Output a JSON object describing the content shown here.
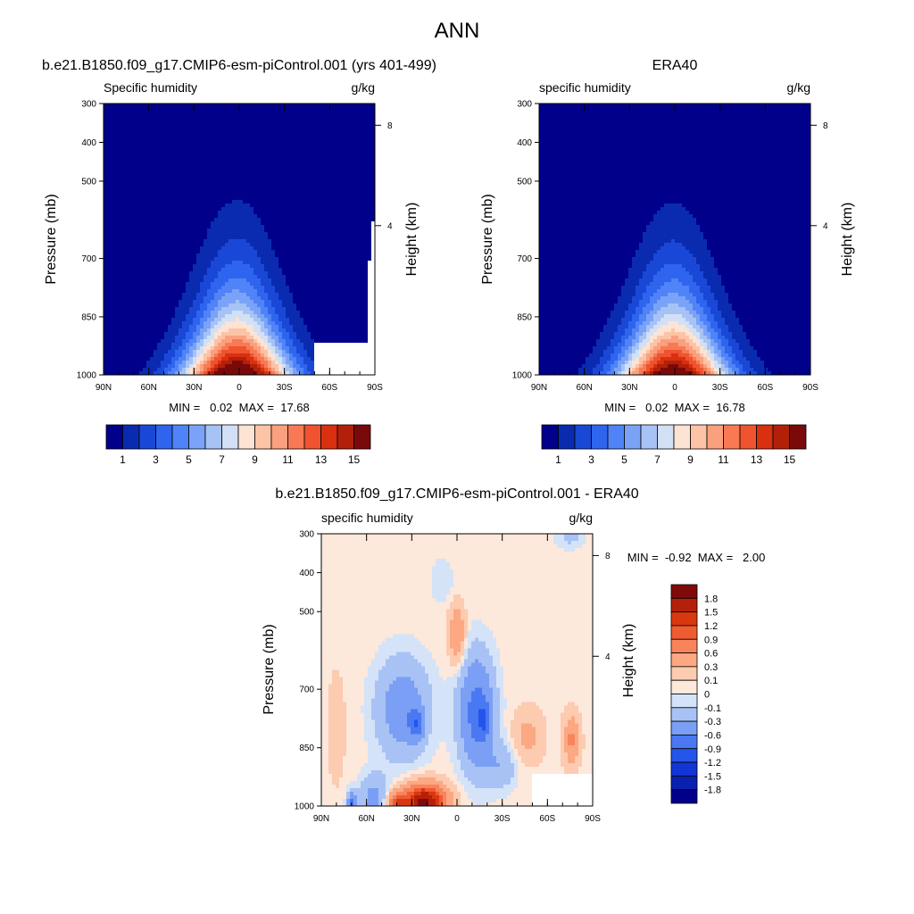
{
  "page_title": "ANN",
  "colors": {
    "abs_levels": [
      "#00008b",
      "#0a2bb0",
      "#1a48d6",
      "#2f64ee",
      "#4f83f7",
      "#7aa3f7",
      "#a7c3f5",
      "#d1e0f5",
      "#fde3d3",
      "#fcc3a6",
      "#fba07e",
      "#f77a55",
      "#ef5330",
      "#d9300f",
      "#b3200a",
      "#7a0a0a"
    ],
    "diff_levels": [
      "#00008b",
      "#0a20b0",
      "#1236d6",
      "#2454ea",
      "#4a78f2",
      "#7a9ff4",
      "#a9c2f5",
      "#d4e3f7",
      "#fde8dc",
      "#fccbb0",
      "#fba883",
      "#f8845c",
      "#f05b31",
      "#d9380f",
      "#b5200a",
      "#800a0a"
    ],
    "missing": "#ffffff"
  },
  "chart_data": [
    {
      "type": "heatmap",
      "name": "model",
      "title": "b.e21.B1850.f09_g17.CMIP6-esm-piControl.001 (yrs 401-499)",
      "subtitle_left": "Specific humidity",
      "subtitle_right": "g/kg",
      "ylabel": "Pressure (mb)",
      "ylabel_right": "Height (km)",
      "x_ticks": [
        "90N",
        "60N",
        "30N",
        "0",
        "30S",
        "60S",
        "90S"
      ],
      "y_ticks": [
        "300",
        "400",
        "500",
        "700",
        "850",
        "1000"
      ],
      "y_ticks_right": [
        "8",
        "4"
      ],
      "stats_text": "MIN =   0.02  MAX =  17.68",
      "colorbar_labels": [
        "1",
        "3",
        "5",
        "7",
        "9",
        "11",
        "13",
        "15"
      ],
      "min": 0.02,
      "max": 17.68
    },
    {
      "type": "heatmap",
      "name": "era40",
      "title": "ERA40",
      "subtitle_left": "specific humidity",
      "subtitle_right": "g/kg",
      "ylabel": "Pressure (mb)",
      "ylabel_right": "Height (km)",
      "x_ticks": [
        "90N",
        "60N",
        "30N",
        "0",
        "30S",
        "60S",
        "90S"
      ],
      "y_ticks": [
        "300",
        "400",
        "500",
        "700",
        "850",
        "1000"
      ],
      "y_ticks_right": [
        "8",
        "4"
      ],
      "stats_text": "MIN =   0.02  MAX =  16.78",
      "colorbar_labels": [
        "1",
        "3",
        "5",
        "7",
        "9",
        "11",
        "13",
        "15"
      ],
      "min": 0.02,
      "max": 16.78
    },
    {
      "type": "heatmap",
      "name": "difference",
      "title": "b.e21.B1850.f09_g17.CMIP6-esm-piControl.001 - ERA40",
      "subtitle_left": "specific humidity",
      "subtitle_right": "g/kg",
      "ylabel": "Pressure (mb)",
      "ylabel_right": "Height (km)",
      "x_ticks": [
        "90N",
        "60N",
        "30N",
        "0",
        "30S",
        "60S",
        "90S"
      ],
      "y_ticks": [
        "300",
        "400",
        "500",
        "700",
        "850",
        "1000"
      ],
      "y_ticks_right": [
        "8",
        "4"
      ],
      "stats_text": "MIN =  -0.92  MAX =   2.00",
      "colorbar_labels": [
        "1.8",
        "1.5",
        "1.2",
        "0.9",
        "0.6",
        "0.3",
        "0.1",
        "0",
        "-0.1",
        "-0.3",
        "-0.6",
        "-0.9",
        "-1.2",
        "-1.5",
        "-1.8"
      ],
      "min": -0.92,
      "max": 2.0
    }
  ]
}
